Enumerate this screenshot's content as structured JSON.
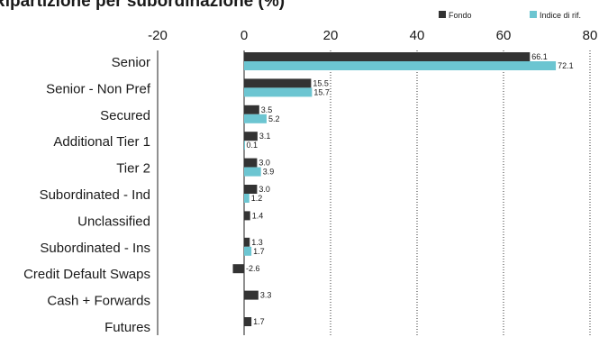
{
  "title": "Ripartizione per subordinazione (%)",
  "colors": {
    "fondo": "#333333",
    "indice": "#6cc5d1",
    "grid": "#333333"
  },
  "chart_data": {
    "type": "bar",
    "orientation": "horizontal",
    "title": "Ripartizione per subordinazione (%)",
    "categories": [
      "Senior",
      "Senior - Non Pref",
      "Secured",
      "Additional Tier 1",
      "Tier 2",
      "Subordinated - Ind",
      "Unclassified",
      "Subordinated - Ins",
      "Credit Default Swaps",
      "Cash + Forwards",
      "Futures"
    ],
    "series": [
      {
        "name": "Fondo",
        "color": "#333333",
        "values": [
          66.1,
          15.5,
          3.5,
          3.1,
          3.0,
          3.0,
          1.4,
          1.3,
          -2.6,
          3.3,
          1.7
        ],
        "labels": [
          "66.1",
          "15.5",
          "3.5",
          "3.1",
          "3.0",
          "3.0",
          "1.4",
          "1.3",
          "-2.6",
          "3.3",
          "1.7"
        ]
      },
      {
        "name": "Indice di rif.",
        "color": "#6cc5d1",
        "values": [
          72.1,
          15.7,
          5.2,
          0.1,
          3.9,
          1.2,
          null,
          1.7,
          null,
          null,
          null
        ],
        "labels": [
          "72.1",
          "15.7",
          "5.2",
          "0.1",
          "3.9",
          "1.2",
          null,
          "1.7",
          null,
          null,
          null
        ]
      }
    ],
    "xlim": [
      -20,
      80
    ],
    "xticks": [
      -20,
      0,
      20,
      40,
      60,
      80
    ],
    "xtick_labels": [
      "-20",
      "0",
      "20",
      "40",
      "60",
      "80"
    ],
    "grid": "vertical dotted",
    "legend_position": "top-right"
  }
}
